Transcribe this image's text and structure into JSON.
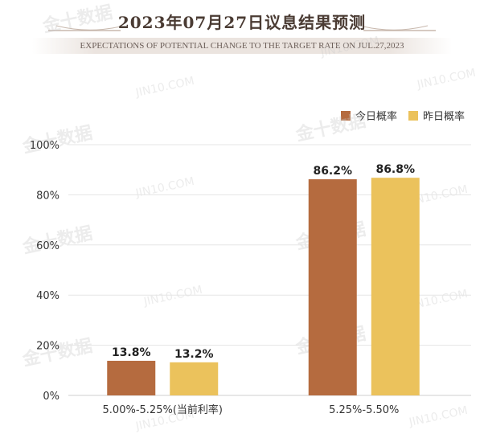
{
  "header": {
    "title": "2023年07月27日议息结果预测",
    "subtitle": "EXPECTATIONS OF POTENTIAL CHANGE TO THE TARGET RATE ON JUL.27,2023"
  },
  "colors": {
    "today": "#b56b3f",
    "yesterday": "#ebc25c",
    "axis_text": "#333333",
    "grid": "#e5e5e5"
  },
  "watermarks": [
    "金十数据",
    "JIN10.COM"
  ],
  "chart_data": {
    "type": "bar",
    "categories": [
      "5.00%-5.25%(当前利率)",
      "5.25%-5.50%"
    ],
    "series": [
      {
        "name": "今日概率",
        "values": [
          13.8,
          86.2
        ],
        "labels": [
          "13.8%",
          "86.2%"
        ]
      },
      {
        "name": "昨日概率",
        "values": [
          13.2,
          86.8
        ],
        "labels": [
          "13.2%",
          "86.8%"
        ]
      }
    ],
    "ylim": [
      0,
      100
    ],
    "yticks": [
      0,
      20,
      40,
      60,
      80,
      100
    ],
    "ytick_labels": [
      "0%",
      "20%",
      "40%",
      "60%",
      "80%",
      "100%"
    ],
    "legend_position": "top-right",
    "grid": true
  }
}
